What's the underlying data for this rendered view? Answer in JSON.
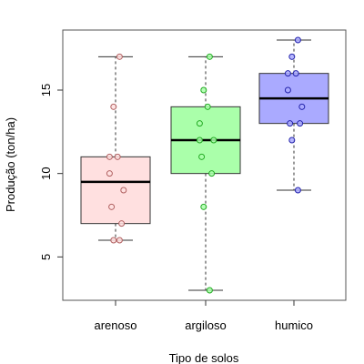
{
  "chart_data": {
    "type": "box",
    "xlabel": "Tipo de solos",
    "ylabel": "Produção (ton/ha)",
    "ylim": [
      2.4,
      18.6
    ],
    "yticks": [
      5,
      10,
      15
    ],
    "grid": false,
    "categories": [
      "arenoso",
      "argiloso",
      "humico"
    ],
    "boxes": [
      {
        "category": "arenoso",
        "fill": "#ffe0e0",
        "point_color": "#b06060",
        "whisker_low": 6,
        "q1": 7,
        "median": 9.5,
        "q3": 11,
        "whisker_high": 17,
        "points": [
          17,
          14,
          11,
          11,
          10,
          9,
          8,
          7,
          6,
          6
        ]
      },
      {
        "category": "argiloso",
        "fill": "#aaffaa",
        "point_color": "#22aa22",
        "whisker_low": 3,
        "q1": 10,
        "median": 12,
        "q3": 14,
        "whisker_high": 17,
        "points": [
          17,
          15,
          14,
          13,
          12,
          12,
          11,
          10,
          8,
          3
        ]
      },
      {
        "category": "humico",
        "fill": "#aaaaff",
        "point_color": "#2222aa",
        "whisker_low": 9,
        "q1": 13,
        "median": 14.5,
        "q3": 16,
        "whisker_high": 18,
        "points": [
          18,
          17,
          16,
          16,
          15,
          14,
          13,
          13,
          12,
          9
        ]
      }
    ]
  }
}
